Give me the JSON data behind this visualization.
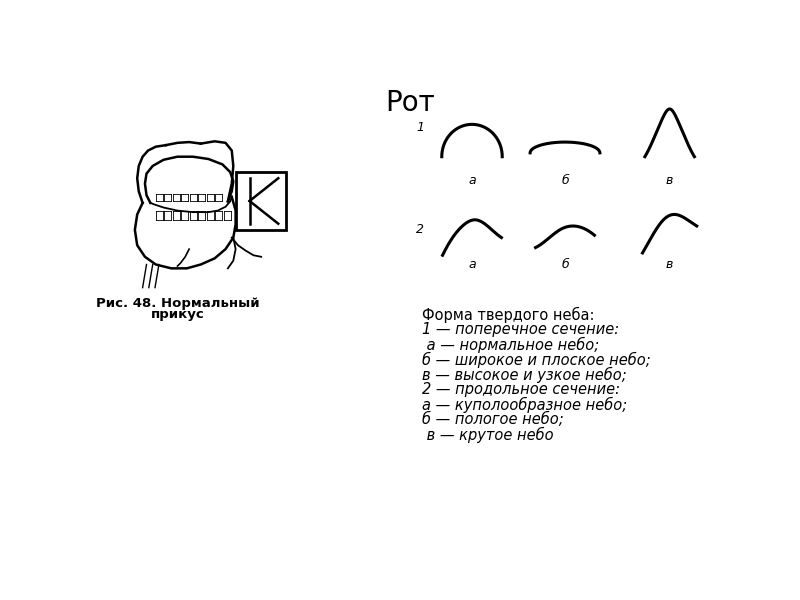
{
  "title": "Рот",
  "title_fontsize": 20,
  "bg_color": "#ffffff",
  "caption_fig48_line1": "Рис. 48. Нормальный",
  "caption_fig48_line2": "прикус",
  "legend_lines": [
    [
      "Форма твердого неба:",
      false
    ],
    [
      "1 — поперечное сечение:",
      true
    ],
    [
      " а — нормальное небо;",
      true
    ],
    [
      "б — широкое и плоское небо;",
      true
    ],
    [
      "в — высокое и узкое небо;",
      true
    ],
    [
      "2 — продольное сечение:",
      true
    ],
    [
      "а — куполообразное небо;",
      true
    ],
    [
      "б — пологое небо;",
      true
    ],
    [
      " в — крутое небо",
      true
    ]
  ],
  "row1_labels": [
    "а",
    "б",
    "в"
  ],
  "row2_labels": [
    "а",
    "б",
    "в"
  ]
}
